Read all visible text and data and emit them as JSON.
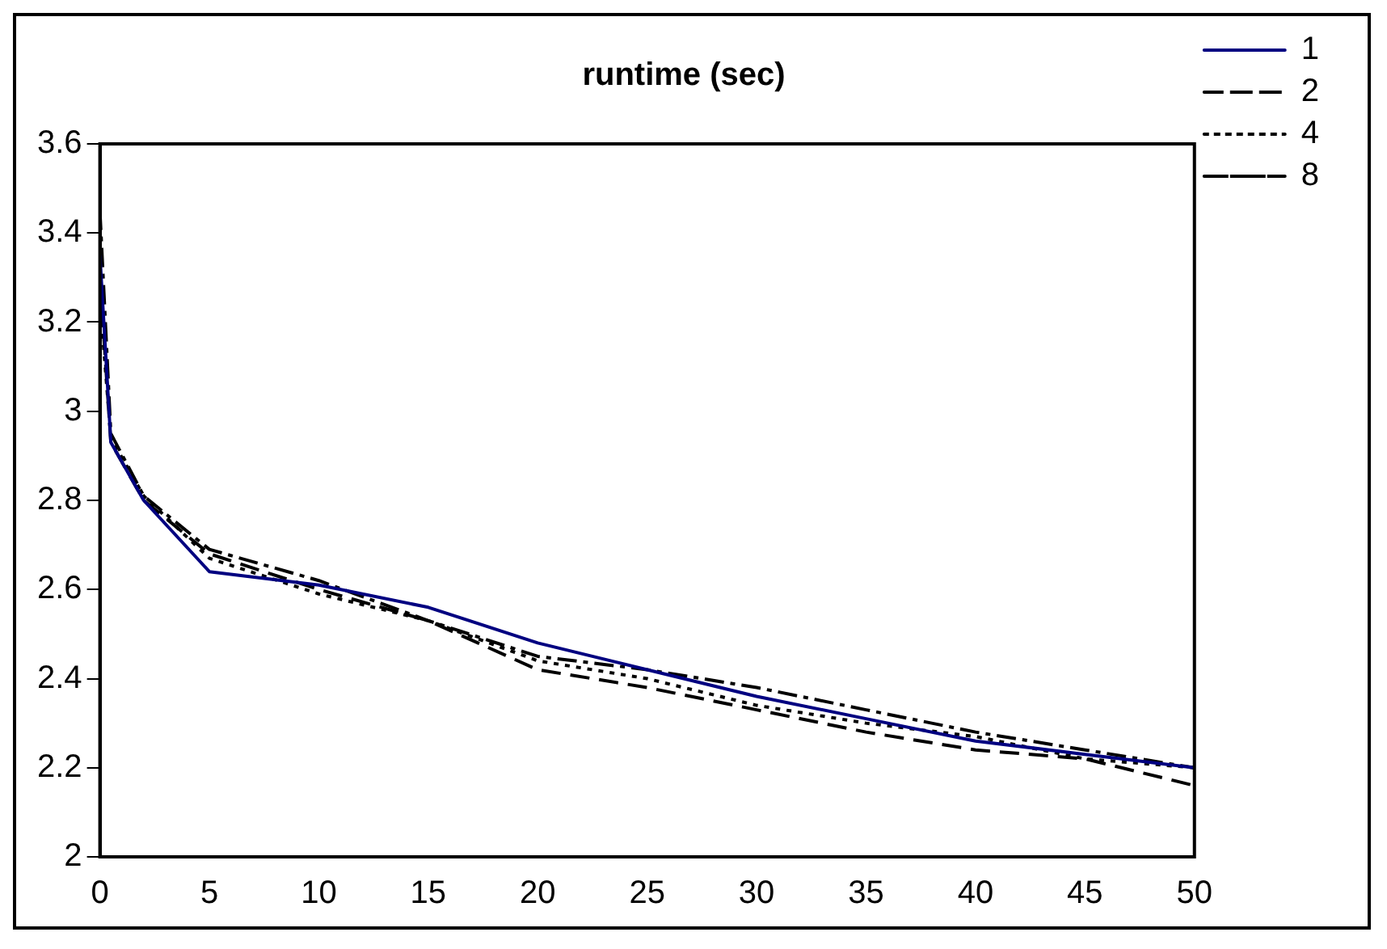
{
  "chart_data": {
    "type": "line",
    "title": "runtime (sec)",
    "x": [
      0,
      0.5,
      2,
      5,
      10,
      15,
      20,
      25,
      30,
      35,
      40,
      45,
      50
    ],
    "series": [
      {
        "name": "1",
        "color": "#000080",
        "line_style": "solid",
        "values": [
          3.35,
          2.93,
          2.8,
          2.64,
          2.61,
          2.56,
          2.48,
          2.42,
          2.36,
          2.31,
          2.26,
          2.23,
          2.2
        ]
      },
      {
        "name": "2",
        "color": "#000000",
        "line_style": "dashed",
        "values": [
          3.3,
          2.93,
          2.8,
          2.68,
          2.6,
          2.53,
          2.42,
          2.38,
          2.33,
          2.28,
          2.24,
          2.22,
          2.16
        ]
      },
      {
        "name": "4",
        "color": "#000000",
        "line_style": "dotted",
        "values": [
          3.25,
          2.94,
          2.81,
          2.67,
          2.59,
          2.53,
          2.44,
          2.4,
          2.34,
          2.3,
          2.27,
          2.22,
          2.2
        ]
      },
      {
        "name": "8",
        "color": "#000000",
        "line_style": "dashdot",
        "values": [
          3.45,
          2.95,
          2.81,
          2.69,
          2.62,
          2.53,
          2.45,
          2.42,
          2.38,
          2.33,
          2.28,
          2.24,
          2.2
        ]
      }
    ],
    "xlim": [
      0,
      50
    ],
    "xticks": [
      0,
      5,
      10,
      15,
      20,
      25,
      30,
      35,
      40,
      45,
      50
    ],
    "ylim": [
      2,
      3.6
    ],
    "yticks": [
      2,
      2.2,
      2.4,
      2.6,
      2.8,
      3,
      3.2,
      3.4,
      3.6
    ],
    "grid": false,
    "legend": "top right",
    "marker": "none"
  }
}
